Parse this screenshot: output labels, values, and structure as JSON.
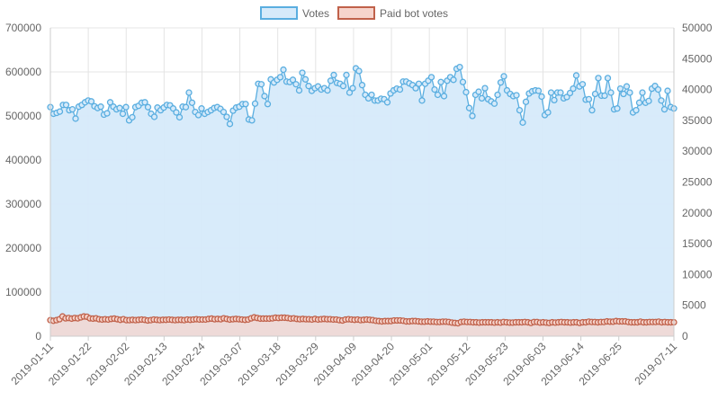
{
  "chart_data": {
    "type": "line",
    "title": "",
    "xlabel": "",
    "ylabel_left": "",
    "ylabel_right": "",
    "x_start": "2019-01-11",
    "x_end": "2019-07-11",
    "x_ticks": [
      "2019-01-11",
      "2019-01-22",
      "2019-02-02",
      "2019-02-13",
      "2019-02-24",
      "2019-03-07",
      "2019-03-18",
      "2019-03-29",
      "2019-04-09",
      "2019-04-20",
      "2019-05-01",
      "2019-05-12",
      "2019-05-23",
      "2019-06-03",
      "2019-06-14",
      "2019-06-25",
      "2019-07-11"
    ],
    "y_left": {
      "min": 0,
      "max": 700000,
      "ticks": [
        0,
        100000,
        200000,
        300000,
        400000,
        500000,
        600000,
        700000
      ]
    },
    "y_right": {
      "min": 0,
      "max": 50000,
      "ticks": [
        0,
        5000,
        10000,
        15000,
        20000,
        25000,
        30000,
        35000,
        40000,
        45000,
        50000
      ]
    },
    "grid": true,
    "legend": "top-center",
    "series": [
      {
        "name": "Votes",
        "axis": "left",
        "color": "#5aaee0",
        "fill": "#d6eafa",
        "values": [
          520000,
          505000,
          507000,
          510000,
          525000,
          525000,
          513000,
          515000,
          494000,
          521000,
          525000,
          531000,
          535000,
          533000,
          522000,
          518000,
          521000,
          503000,
          506000,
          531000,
          521000,
          515000,
          518000,
          505000,
          520000,
          490000,
          497000,
          520000,
          523000,
          530000,
          531000,
          520000,
          505000,
          498000,
          519000,
          513000,
          519000,
          525000,
          524000,
          517000,
          508000,
          497000,
          521000,
          520000,
          553000,
          530000,
          509000,
          502000,
          517000,
          505000,
          509000,
          513000,
          518000,
          520000,
          516000,
          509000,
          498000,
          482000,
          512000,
          519000,
          521000,
          527000,
          527000,
          492000,
          490000,
          528000,
          573000,
          572000,
          545000,
          527000,
          583000,
          576000,
          582000,
          588000,
          605000,
          578000,
          577000,
          582000,
          572000,
          558000,
          598000,
          583000,
          568000,
          557000,
          563000,
          567000,
          560000,
          563000,
          558000,
          580000,
          593000,
          575000,
          573000,
          568000,
          593000,
          553000,
          563000,
          608000,
          602000,
          570000,
          548000,
          540000,
          548000,
          535000,
          535000,
          539000,
          538000,
          531000,
          551000,
          558000,
          562000,
          560000,
          578000,
          578000,
          574000,
          570000,
          563000,
          573000,
          535000,
          573000,
          580000,
          588000,
          560000,
          548000,
          577000,
          545000,
          580000,
          588000,
          582000,
          607000,
          611000,
          577000,
          554000,
          518000,
          500000,
          548000,
          555000,
          540000,
          563000,
          538000,
          533000,
          528000,
          548000,
          576000,
          590000,
          558000,
          550000,
          545000,
          547000,
          513000,
          485000,
          532000,
          551000,
          556000,
          558000,
          557000,
          544000,
          502000,
          508000,
          553000,
          536000,
          553000,
          553000,
          540000,
          543000,
          552000,
          562000,
          592000,
          567000,
          572000,
          537000,
          538000,
          513000,
          550000,
          586000,
          546000,
          546000,
          586000,
          553000,
          515000,
          517000,
          562000,
          550000,
          567000,
          553000,
          508000,
          513000,
          530000,
          553000,
          530000,
          534000,
          562000,
          568000,
          560000,
          535000,
          515000,
          557000,
          520000,
          517000
        ]
      },
      {
        "name": "Paid bot votes",
        "axis": "right",
        "color": "#c0614a",
        "fill": "#f6d4cc",
        "values": [
          2600,
          2500,
          2600,
          2750,
          3200,
          2900,
          2950,
          2850,
          2950,
          2900,
          3050,
          3200,
          3150,
          2900,
          2850,
          2900,
          2750,
          2700,
          2750,
          2700,
          2800,
          2850,
          2750,
          2650,
          2750,
          2600,
          2600,
          2650,
          2600,
          2650,
          2700,
          2650,
          2550,
          2600,
          2700,
          2650,
          2600,
          2650,
          2650,
          2700,
          2650,
          2600,
          2650,
          2650,
          2600,
          2700,
          2650,
          2700,
          2750,
          2700,
          2700,
          2700,
          2800,
          2850,
          2750,
          2800,
          2750,
          2900,
          2800,
          2700,
          2750,
          2800,
          2750,
          2700,
          2650,
          2700,
          2900,
          3050,
          2950,
          2850,
          2850,
          2850,
          2850,
          2900,
          3000,
          2950,
          3000,
          3000,
          2950,
          2850,
          2900,
          2800,
          2750,
          2800,
          2750,
          2750,
          2700,
          2800,
          2700,
          2750,
          2800,
          2750,
          2750,
          2700,
          2700,
          2600,
          2550,
          2700,
          2750,
          2700,
          2650,
          2700,
          2600,
          2650,
          2700,
          2650,
          2600,
          2500,
          2450,
          2400,
          2450,
          2450,
          2450,
          2550,
          2550,
          2550,
          2500,
          2400,
          2400,
          2450,
          2450,
          2400,
          2350,
          2350,
          2400,
          2350,
          2350,
          2300,
          2300,
          2350,
          2350,
          2300,
          2200,
          2150,
          2100,
          2300,
          2350,
          2300,
          2300,
          2250,
          2250,
          2200,
          2250,
          2250,
          2250,
          2250,
          2200,
          2250,
          2200,
          2300,
          2250,
          2200,
          2200,
          2250,
          2250,
          2250,
          2300,
          2250,
          2150,
          2300,
          2300,
          2200,
          2250,
          2200,
          2150,
          2250,
          2200,
          2250,
          2300,
          2250,
          2250,
          2200,
          2250,
          2250,
          2150,
          2250,
          2250,
          2350,
          2300,
          2300,
          2250,
          2300,
          2300,
          2400,
          2350,
          2350,
          2450,
          2400,
          2400,
          2400,
          2300,
          2250,
          2250,
          2250,
          2350,
          2250,
          2250,
          2300,
          2300,
          2300,
          2350,
          2250,
          2300,
          2250,
          2250,
          2250
        ]
      }
    ]
  }
}
